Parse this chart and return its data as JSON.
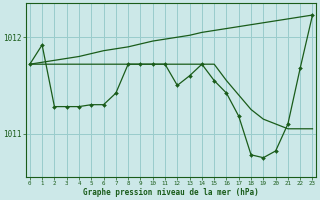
{
  "xlabel": "Graphe pression niveau de la mer (hPa)",
  "bg_color": "#cce8e8",
  "grid_color": "#99cccc",
  "line_color": "#1a5c1a",
  "x": [
    0,
    1,
    2,
    3,
    4,
    5,
    6,
    7,
    8,
    9,
    10,
    11,
    12,
    13,
    14,
    15,
    16,
    17,
    18,
    19,
    20,
    21,
    22,
    23
  ],
  "line_flat_top": [
    1011.72,
    1011.72,
    1011.72,
    1011.72,
    1011.72,
    1011.72,
    1011.72,
    1011.72,
    1011.72,
    1011.72,
    1011.72,
    1011.72,
    1011.72,
    1011.72,
    1011.72,
    1011.72,
    1011.55,
    1011.4,
    1011.25,
    1011.15,
    1011.1,
    1011.05,
    1011.05,
    1011.05
  ],
  "line_rising": [
    1011.72,
    1011.74,
    1011.76,
    1011.78,
    1011.8,
    1011.83,
    1011.86,
    1011.88,
    1011.9,
    1011.93,
    1011.96,
    1011.98,
    1012.0,
    1012.02,
    1012.05,
    1012.07,
    1012.09,
    1012.11,
    1012.13,
    1012.15,
    1012.17,
    1012.19,
    1012.21,
    1012.23
  ],
  "line_jagged": [
    1011.72,
    1011.92,
    1011.28,
    1011.28,
    1011.28,
    1011.3,
    1011.3,
    1011.42,
    1011.72,
    1011.72,
    1011.72,
    1011.72,
    1011.5,
    1011.6,
    1011.72,
    1011.55,
    1011.42,
    1011.18,
    1010.78,
    1010.75,
    1010.82,
    1011.1,
    1011.68,
    1012.23
  ],
  "ylim": [
    1010.55,
    1012.35
  ],
  "yticks": [
    1011.0,
    1012.0
  ],
  "xlim": [
    -0.3,
    23.3
  ]
}
